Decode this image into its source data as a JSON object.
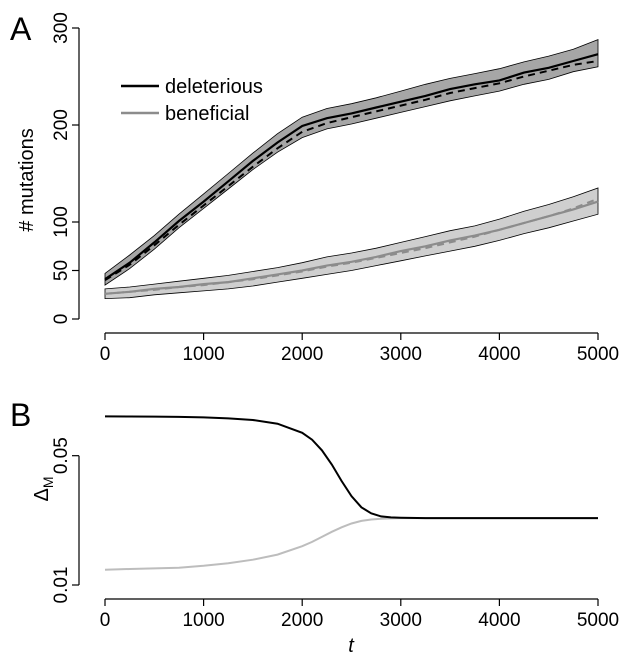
{
  "chart_data": [
    {
      "panel_label": "A",
      "type": "line",
      "ylabel": "# mutations",
      "xlim": [
        0,
        5000
      ],
      "ylim": [
        0,
        300
      ],
      "xticks": [
        0,
        1000,
        2000,
        3000,
        4000,
        5000
      ],
      "yticks": [
        0,
        50,
        100,
        200,
        300
      ],
      "ytick_labels": [
        "0",
        "50",
        "100",
        "200",
        "300"
      ],
      "grid": false,
      "legend_position": "top-left",
      "legend": [
        "deleterious",
        "beneficial"
      ],
      "series": [
        {
          "name": "deleterious",
          "color": "#000000",
          "band_color": "#a6a6a6",
          "x": [
            0,
            250,
            500,
            750,
            1000,
            1250,
            1500,
            1750,
            2000,
            2250,
            2500,
            2750,
            3000,
            3250,
            3500,
            3750,
            4000,
            4250,
            4500,
            4750,
            5000
          ],
          "mean": [
            41,
            58,
            79,
            101,
            121,
            142,
            163,
            182,
            199,
            207,
            212,
            218,
            224,
            230,
            237,
            242,
            246,
            254,
            259,
            266,
            273
          ],
          "lower": [
            35,
            52,
            72,
            94,
            114,
            134,
            154,
            172,
            187,
            196,
            201,
            207,
            213,
            219,
            225,
            230,
            235,
            242,
            247,
            255,
            260
          ],
          "upper": [
            47,
            66,
            86,
            108,
            129,
            150,
            171,
            191,
            208,
            217,
            222,
            228,
            235,
            242,
            248,
            253,
            258,
            265,
            271,
            278,
            288
          ],
          "expected": [
            40,
            56,
            76,
            97,
            117,
            137,
            157,
            176,
            193,
            202,
            208,
            214,
            220,
            226,
            233,
            238,
            243,
            250,
            256,
            262,
            266
          ]
        },
        {
          "name": "beneficial",
          "color": "#8c8c8c",
          "band_color": "#cfcfcf",
          "x": [
            0,
            250,
            500,
            750,
            1000,
            1250,
            1500,
            1750,
            2000,
            2250,
            2500,
            2750,
            3000,
            3250,
            3500,
            3750,
            4000,
            4250,
            4500,
            4750,
            5000
          ],
          "mean": [
            26,
            28,
            31,
            33,
            36,
            38,
            42,
            46,
            50,
            55,
            59,
            64,
            70,
            75,
            81,
            86,
            92,
            99,
            106,
            113,
            121
          ],
          "lower": [
            21,
            22,
            25,
            27,
            29,
            31,
            34,
            38,
            42,
            46,
            50,
            55,
            60,
            65,
            70,
            75,
            81,
            88,
            94,
            101,
            108
          ],
          "upper": [
            31,
            33,
            36,
            39,
            42,
            45,
            49,
            53,
            58,
            64,
            68,
            73,
            79,
            85,
            91,
            96,
            103,
            111,
            118,
            126,
            135
          ],
          "expected": [
            26,
            28,
            30,
            33,
            35,
            38,
            41,
            45,
            49,
            54,
            58,
            63,
            68,
            73,
            79,
            85,
            92,
            99,
            106,
            114,
            124
          ]
        }
      ]
    },
    {
      "panel_label": "B",
      "type": "line",
      "xlabel": "t",
      "ylabel": "Δ",
      "ylabel_subscript": "M",
      "xlim": [
        0,
        5000
      ],
      "ylim": [
        0.01,
        0.1
      ],
      "yscale": "log",
      "xticks": [
        0,
        1000,
        2000,
        3000,
        4000,
        5000
      ],
      "yticks": [
        0.01,
        0.05
      ],
      "ytick_labels": [
        "0.01",
        "0.05"
      ],
      "grid": false,
      "series": [
        {
          "name": "deleterious",
          "color": "#000000",
          "x": [
            0,
            250,
            500,
            750,
            1000,
            1250,
            1500,
            1750,
            2000,
            2100,
            2200,
            2300,
            2400,
            2500,
            2600,
            2700,
            2800,
            2900,
            3000,
            3250,
            3500,
            4000,
            4500,
            5000
          ],
          "values": [
            0.0815,
            0.0814,
            0.0813,
            0.081,
            0.0805,
            0.0795,
            0.078,
            0.0745,
            0.0665,
            0.061,
            0.0535,
            0.0448,
            0.0365,
            0.0302,
            0.0263,
            0.0244,
            0.0235,
            0.0232,
            0.0231,
            0.023,
            0.023,
            0.023,
            0.023,
            0.023
          ]
        },
        {
          "name": "beneficial",
          "color": "#bdbdbd",
          "x": [
            0,
            250,
            500,
            750,
            1000,
            1250,
            1500,
            1750,
            2000,
            2100,
            2200,
            2300,
            2400,
            2500,
            2600,
            2700,
            2800,
            2900,
            3000,
            3250,
            3500,
            4000,
            4500,
            5000
          ],
          "values": [
            0.0121,
            0.0122,
            0.0123,
            0.0124,
            0.0127,
            0.0131,
            0.0137,
            0.0146,
            0.0162,
            0.0171,
            0.0182,
            0.0194,
            0.0205,
            0.0215,
            0.0222,
            0.0226,
            0.0228,
            0.0229,
            0.023,
            0.023,
            0.023,
            0.023,
            0.023,
            0.023
          ]
        }
      ]
    }
  ]
}
